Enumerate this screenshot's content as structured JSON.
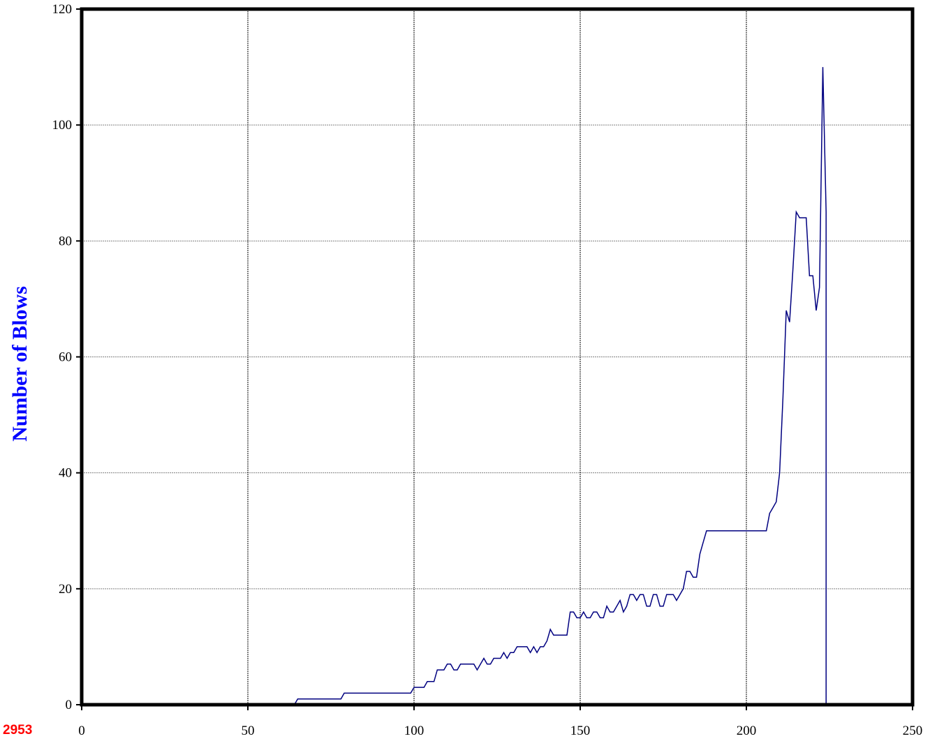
{
  "corner_label": "2953",
  "colors": {
    "line": "#000080",
    "ylabel": "#0000ff",
    "corner": "#ff0000"
  },
  "chart_data": {
    "type": "line",
    "title": "",
    "xlabel": "",
    "ylabel": "Number of Blows",
    "xlim": [
      0,
      250
    ],
    "ylim": [
      0,
      120
    ],
    "xticks": [
      0,
      50,
      100,
      150,
      200,
      250
    ],
    "yticks": [
      0,
      20,
      40,
      60,
      80,
      100,
      120
    ],
    "grid": true,
    "series": [
      {
        "x": [
          64,
          65,
          66,
          78,
          79,
          80,
          99,
          100,
          101,
          103,
          104,
          106,
          107,
          109,
          110,
          111,
          112,
          113,
          114,
          116,
          118,
          119,
          120,
          121,
          122,
          123,
          124,
          125,
          126,
          127,
          128,
          129,
          130,
          131,
          132,
          134,
          135,
          136,
          137,
          138,
          139,
          140,
          141,
          142,
          143,
          144,
          146,
          147,
          148,
          149,
          150,
          151,
          152,
          153,
          154,
          155,
          156,
          157,
          158,
          159,
          160,
          161,
          162,
          163,
          164,
          165,
          166,
          167,
          168,
          169,
          170,
          171,
          172,
          173,
          174,
          175,
          176,
          177,
          178,
          179,
          180,
          181,
          182,
          183,
          184,
          185,
          186,
          187,
          188,
          189,
          190,
          206,
          207,
          208,
          209,
          210,
          211,
          212,
          213,
          214,
          215,
          216,
          217,
          218,
          219,
          220,
          221,
          222,
          223,
          224,
          224
        ],
        "y": [
          0,
          1,
          1,
          1,
          2,
          2,
          2,
          3,
          3,
          3,
          4,
          4,
          6,
          6,
          7,
          7,
          6,
          6,
          7,
          7,
          7,
          6,
          7,
          8,
          7,
          7,
          8,
          8,
          8,
          9,
          8,
          9,
          9,
          10,
          10,
          10,
          9,
          10,
          9,
          10,
          10,
          11,
          13,
          12,
          12,
          12,
          12,
          16,
          16,
          15,
          15,
          16,
          15,
          15,
          16,
          16,
          15,
          15,
          17,
          16,
          16,
          17,
          18,
          16,
          17,
          19,
          19,
          18,
          19,
          19,
          17,
          17,
          19,
          19,
          17,
          17,
          19,
          19,
          19,
          18,
          19,
          20,
          23,
          23,
          22,
          22,
          26,
          28,
          30,
          30,
          30,
          30,
          33,
          34,
          35,
          40,
          53,
          68,
          66,
          75,
          85,
          84,
          84,
          84,
          74,
          74,
          68,
          72,
          110,
          85,
          0
        ]
      }
    ]
  }
}
